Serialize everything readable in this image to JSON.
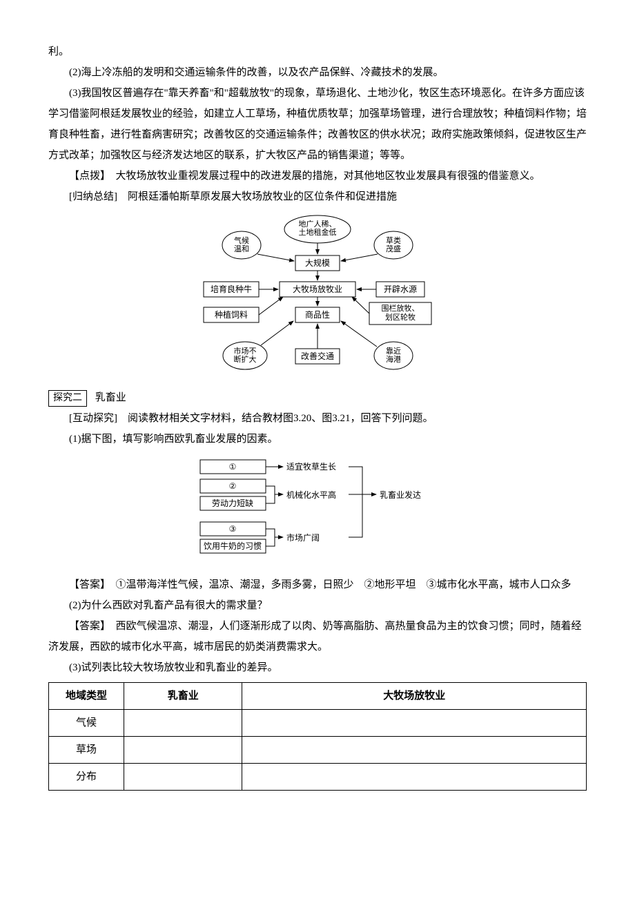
{
  "top": {
    "tail": "利。",
    "p2": "(2)海上冷冻船的发明和交通运输条件的改善，以及农产品保鲜、冷藏技术的发展。",
    "p3": "(3)我国牧区普遍存在\"靠天养畜\"和\"超载放牧\"的现象，草场退化、土地沙化，牧区生态环境恶化。在许多方面应该学习借鉴阿根廷发展牧业的经验，如建立人工草场，种植优质牧草；加强草场管理，进行合理放牧；种植饲料作物；培育良种牲畜，进行牲畜病害研究；改善牧区的交通运输条件；改善牧区的供水状况；政府实施政策倾斜，促进牧区生产方式改革；加强牧区与经济发达地区的联系，扩大牧区产品的销售渠道；等等。",
    "dianbo": "【点拨】　大牧场放牧业重视发展过程中的改进发展的措施，对其他地区牧业发展具有很强的借鉴意义。",
    "guina": "[归纳总结]　阿根廷潘帕斯草原发展大牧场放牧业的区位条件和促进措施"
  },
  "diagram1": {
    "ellipses": {
      "diguang": "地广人稀、\n土地租金低",
      "qihou": "气候\n温和",
      "caolei": "草类\n茂盛",
      "shichang": "市场不\n断扩大",
      "kaojin": "靠近\n海港"
    },
    "rects": {
      "guimo": "大规模",
      "peiyu": "培育良种牛",
      "center": "大牧场放牧业",
      "kaipi": "开辟水源",
      "zhongzhi": "种植饲料",
      "shangpin": "商品性",
      "weilan": "围栏放牧、\n划区轮牧",
      "gaishan": "改善交通"
    },
    "colors": {
      "stroke": "#000000",
      "fill": "#ffffff",
      "text": "#000000"
    }
  },
  "explore2": {
    "box": "探究二",
    "title": "乳畜业",
    "hudong": "[互动探究]　阅读教材相关文字材料，结合教材图3.20、图3.21，回答下列问题。",
    "q1": "(1)据下图，填写影响西欧乳畜业发展的因素。"
  },
  "diagram2": {
    "labels": {
      "b1": "①",
      "b2": "②",
      "b3": "劳动力短缺",
      "b4": "③",
      "b5": "饮用牛奶的习惯",
      "r1": "适宜牧草生长",
      "r2": "机械化水平高",
      "r3": "市场广阔",
      "out": "乳畜业发达"
    },
    "colors": {
      "stroke": "#000000",
      "text": "#000000"
    }
  },
  "answers": {
    "a1": "【答案】　①温带海洋性气候，温凉、潮湿，多雨多雾，日照少　②地形平坦　③城市化水平高，城市人口众多",
    "q2": "(2)为什么西欧对乳畜产品有很大的需求量？",
    "a2": "【答案】　西欧气候温凉、潮湿，人们逐渐形成了以肉、奶等高脂肪、高热量食品为主的饮食习惯；同时，随着经济发展，西欧的城市化水平高，城市居民的奶类消费需求大。",
    "q3": "(3)试列表比较大牧场放牧业和乳畜业的差异。"
  },
  "table": {
    "headers": [
      "地域类型",
      "乳畜业",
      "大牧场放牧业"
    ],
    "rows": [
      [
        "气候",
        "",
        ""
      ],
      [
        "草场",
        "",
        ""
      ],
      [
        "分布",
        "",
        ""
      ]
    ],
    "col_widths": [
      "14%",
      "22%",
      "64%"
    ]
  }
}
